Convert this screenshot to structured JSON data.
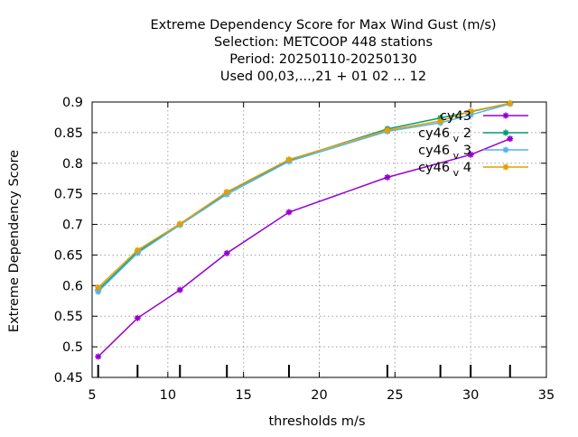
{
  "chart_data": {
    "type": "line",
    "title_lines": [
      "Extreme Dependency Score  for Max Wind Gust (m/s)",
      "Selection: METCOOP    448 stations",
      "Period: 20250110-20250130",
      "Used  00,03,...,21  + 01 02 ... 12"
    ],
    "xlabel": "thresholds m/s",
    "ylabel": "Extreme Dependency Score",
    "xlim": [
      5,
      35
    ],
    "ylim": [
      0.45,
      0.9
    ],
    "xticks": [
      5,
      10,
      15,
      20,
      25,
      30,
      35
    ],
    "yticks": [
      0.45,
      0.5,
      0.55,
      0.6,
      0.65,
      0.7,
      0.75,
      0.8,
      0.85,
      0.9
    ],
    "threshold_marks": [
      5.4,
      8,
      10.8,
      13.9,
      18,
      24.5,
      28,
      30,
      32.6
    ],
    "grid": true,
    "legend_position": "top-right",
    "series": [
      {
        "name": "cy43",
        "label_main": "cy43",
        "label_sub": "",
        "label_suffix": "",
        "color": "#9400d3",
        "x": [
          5.4,
          8,
          10.8,
          13.9,
          18,
          24.5,
          30,
          32.6
        ],
        "y": [
          0.484,
          0.547,
          0.593,
          0.653,
          0.72,
          0.777,
          0.814,
          0.84
        ]
      },
      {
        "name": "cy46_v2",
        "label_main": "cy46",
        "label_sub": "v",
        "label_suffix": "2",
        "color": "#009e73",
        "x": [
          5.4,
          8,
          10.8,
          13.9,
          18,
          24.5,
          28,
          30,
          32.6
        ],
        "y": [
          0.593,
          0.655,
          0.7,
          0.752,
          0.805,
          0.856,
          0.874,
          0.884,
          0.898
        ]
      },
      {
        "name": "cy46_v3",
        "label_main": "cy46",
        "label_sub": "v",
        "label_suffix": "3",
        "color": "#56b4e9",
        "x": [
          5.4,
          8,
          10.8,
          13.9,
          18,
          24.5,
          28,
          30,
          32.6
        ],
        "y": [
          0.59,
          0.653,
          0.699,
          0.749,
          0.803,
          0.852,
          0.866,
          0.879,
          0.897
        ]
      },
      {
        "name": "cy46_v4",
        "label_main": "cy46",
        "label_sub": "v",
        "label_suffix": "4",
        "color": "#e69f00",
        "x": [
          5.4,
          8,
          10.8,
          13.9,
          18,
          24.5,
          28,
          30,
          32.6
        ],
        "y": [
          0.597,
          0.658,
          0.701,
          0.753,
          0.806,
          0.854,
          0.869,
          0.885,
          0.898
        ]
      }
    ]
  }
}
